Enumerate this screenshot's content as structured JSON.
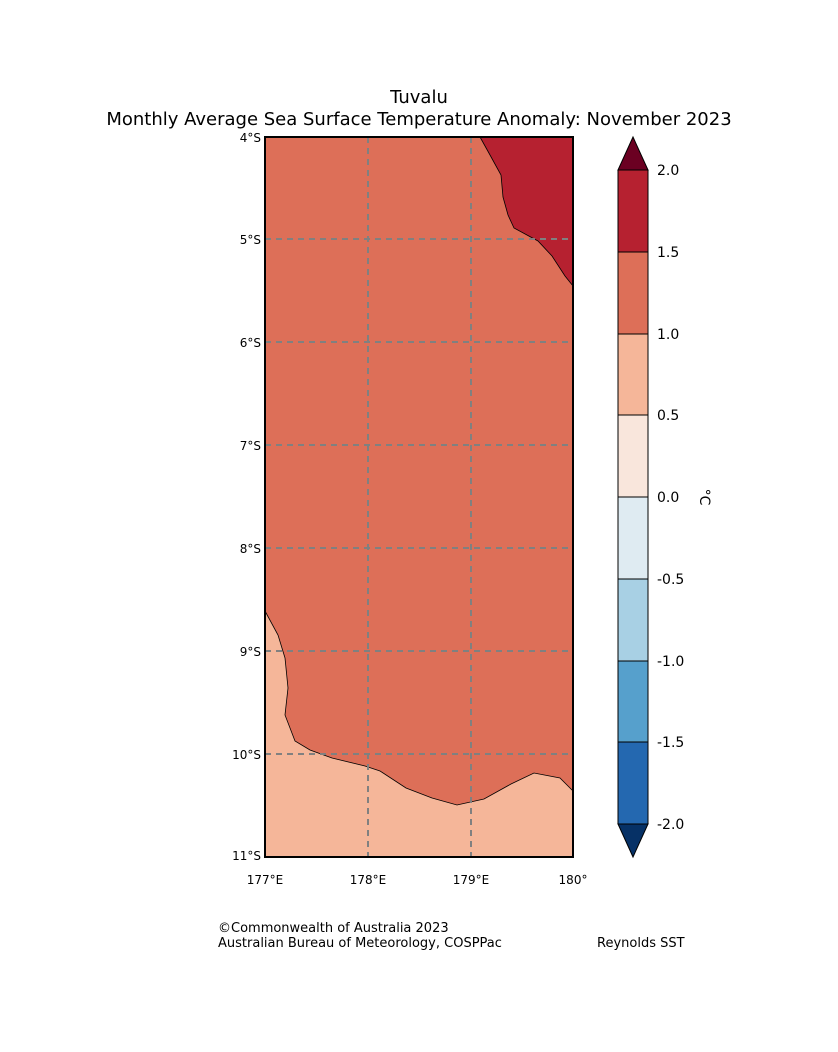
{
  "title": {
    "line1": "Tuvalu",
    "line2": "Monthly Average Sea Surface Temperature Anomaly: November 2023"
  },
  "map": {
    "lat_labels": [
      "4°S",
      "5°S",
      "6°S",
      "7°S",
      "8°S",
      "9°S",
      "10°S",
      "11°S"
    ],
    "lon_labels": [
      "177°E",
      "178°E",
      "179°E",
      "180°"
    ],
    "lat_range": [
      -11,
      -4
    ],
    "lon_range": [
      177,
      180
    ],
    "regions": [
      {
        "name": "anomaly-1.5-2.0",
        "color": "#b62130"
      },
      {
        "name": "anomaly-1.0-1.5",
        "color": "#dd6f58"
      },
      {
        "name": "anomaly-0.5-1.0",
        "color": "#f5b699"
      }
    ]
  },
  "colorbar": {
    "unit": "°C",
    "ticks": [
      "2.0",
      "1.5",
      "1.0",
      "0.5",
      "0.0",
      "-0.5",
      "-1.0",
      "-1.5",
      "-2.0"
    ],
    "bins": [
      "#b62130",
      "#dd6f58",
      "#f5b699",
      "#f9e6dc",
      "#dfebf2",
      "#a8d0e4",
      "#56a0cc",
      "#2468b0"
    ],
    "over_color": "#6b0022",
    "under_color": "#063166"
  },
  "credits": {
    "copyright": "©Commonwealth of Australia 2023",
    "agency": "Australian Bureau of Meteorology, COSPPac",
    "source": "Reynolds SST"
  }
}
